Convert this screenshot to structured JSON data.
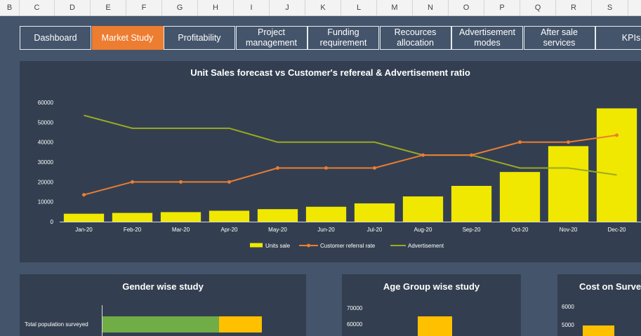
{
  "columns": [
    "B",
    "C",
    "D",
    "E",
    "F",
    "G",
    "H",
    "I",
    "J",
    "K",
    "L",
    "M",
    "N",
    "O",
    "P",
    "Q",
    "R",
    "S"
  ],
  "nav": {
    "tabs": [
      {
        "label": "Dashboard",
        "active": false
      },
      {
        "label": "Market Study",
        "active": true
      },
      {
        "label": "Profitability",
        "active": false
      },
      {
        "label": "Project\nmanagement",
        "active": false
      },
      {
        "label": "Funding\nrequirement",
        "active": false
      },
      {
        "label": "Recources\nallocation",
        "active": false
      },
      {
        "label": "Advertisement\nmodes",
        "active": false
      },
      {
        "label": "After sale\nservices",
        "active": false
      },
      {
        "label": "KPIs",
        "active": false
      }
    ]
  },
  "colors": {
    "units": "#f0e800",
    "referral": "#ed7d31",
    "advertisement": "#9aaa22",
    "green": "#70ad47",
    "amber": "#ffc000"
  },
  "chart_data": [
    {
      "type": "bar+line",
      "title": "Unit Sales forecast vs Customer's refereal & Advertisement ratio",
      "categories": [
        "Jan-20",
        "Feb-20",
        "Mar-20",
        "Apr-20",
        "May-20",
        "Jun-20",
        "Jul-20",
        "Aug-20",
        "Sep-20",
        "Oct-20",
        "Nov-20",
        "Dec-20"
      ],
      "ylim": [
        0,
        60000
      ],
      "yticks": [
        0,
        10000,
        20000,
        30000,
        40000,
        50000,
        60000
      ],
      "series": [
        {
          "name": "Units sale",
          "kind": "bar",
          "values": [
            4000,
            4400,
            4800,
            5500,
            6300,
            7500,
            9200,
            12700,
            18000,
            25000,
            38000,
            57000
          ]
        },
        {
          "name": "Customer referral rate",
          "kind": "line",
          "markers": true,
          "values": [
            13500,
            20000,
            20000,
            20000,
            27000,
            27000,
            27000,
            33500,
            33500,
            40000,
            40000,
            43500
          ]
        },
        {
          "name": "Advertisement",
          "kind": "line",
          "markers": false,
          "values": [
            53500,
            47000,
            47000,
            47000,
            40000,
            40000,
            40000,
            33500,
            33500,
            27000,
            27000,
            23500
          ]
        }
      ],
      "legend": [
        "Units sale",
        "Customer referral rate",
        "Advertisement"
      ]
    },
    {
      "type": "bar",
      "title": "Gender wise study",
      "categories": [
        "Total population surveyed"
      ],
      "series": [
        {
          "name": "segment-1",
          "values": [
            0.73
          ]
        },
        {
          "name": "segment-2",
          "values": [
            0.27
          ]
        }
      ]
    },
    {
      "type": "bar",
      "title": "Age Group wise study",
      "yticks": [
        60000,
        70000
      ],
      "values": [
        64000
      ]
    },
    {
      "type": "bar",
      "title": "Cost on Survey",
      "yticks": [
        5000,
        6000
      ],
      "values": [
        5000
      ]
    }
  ]
}
